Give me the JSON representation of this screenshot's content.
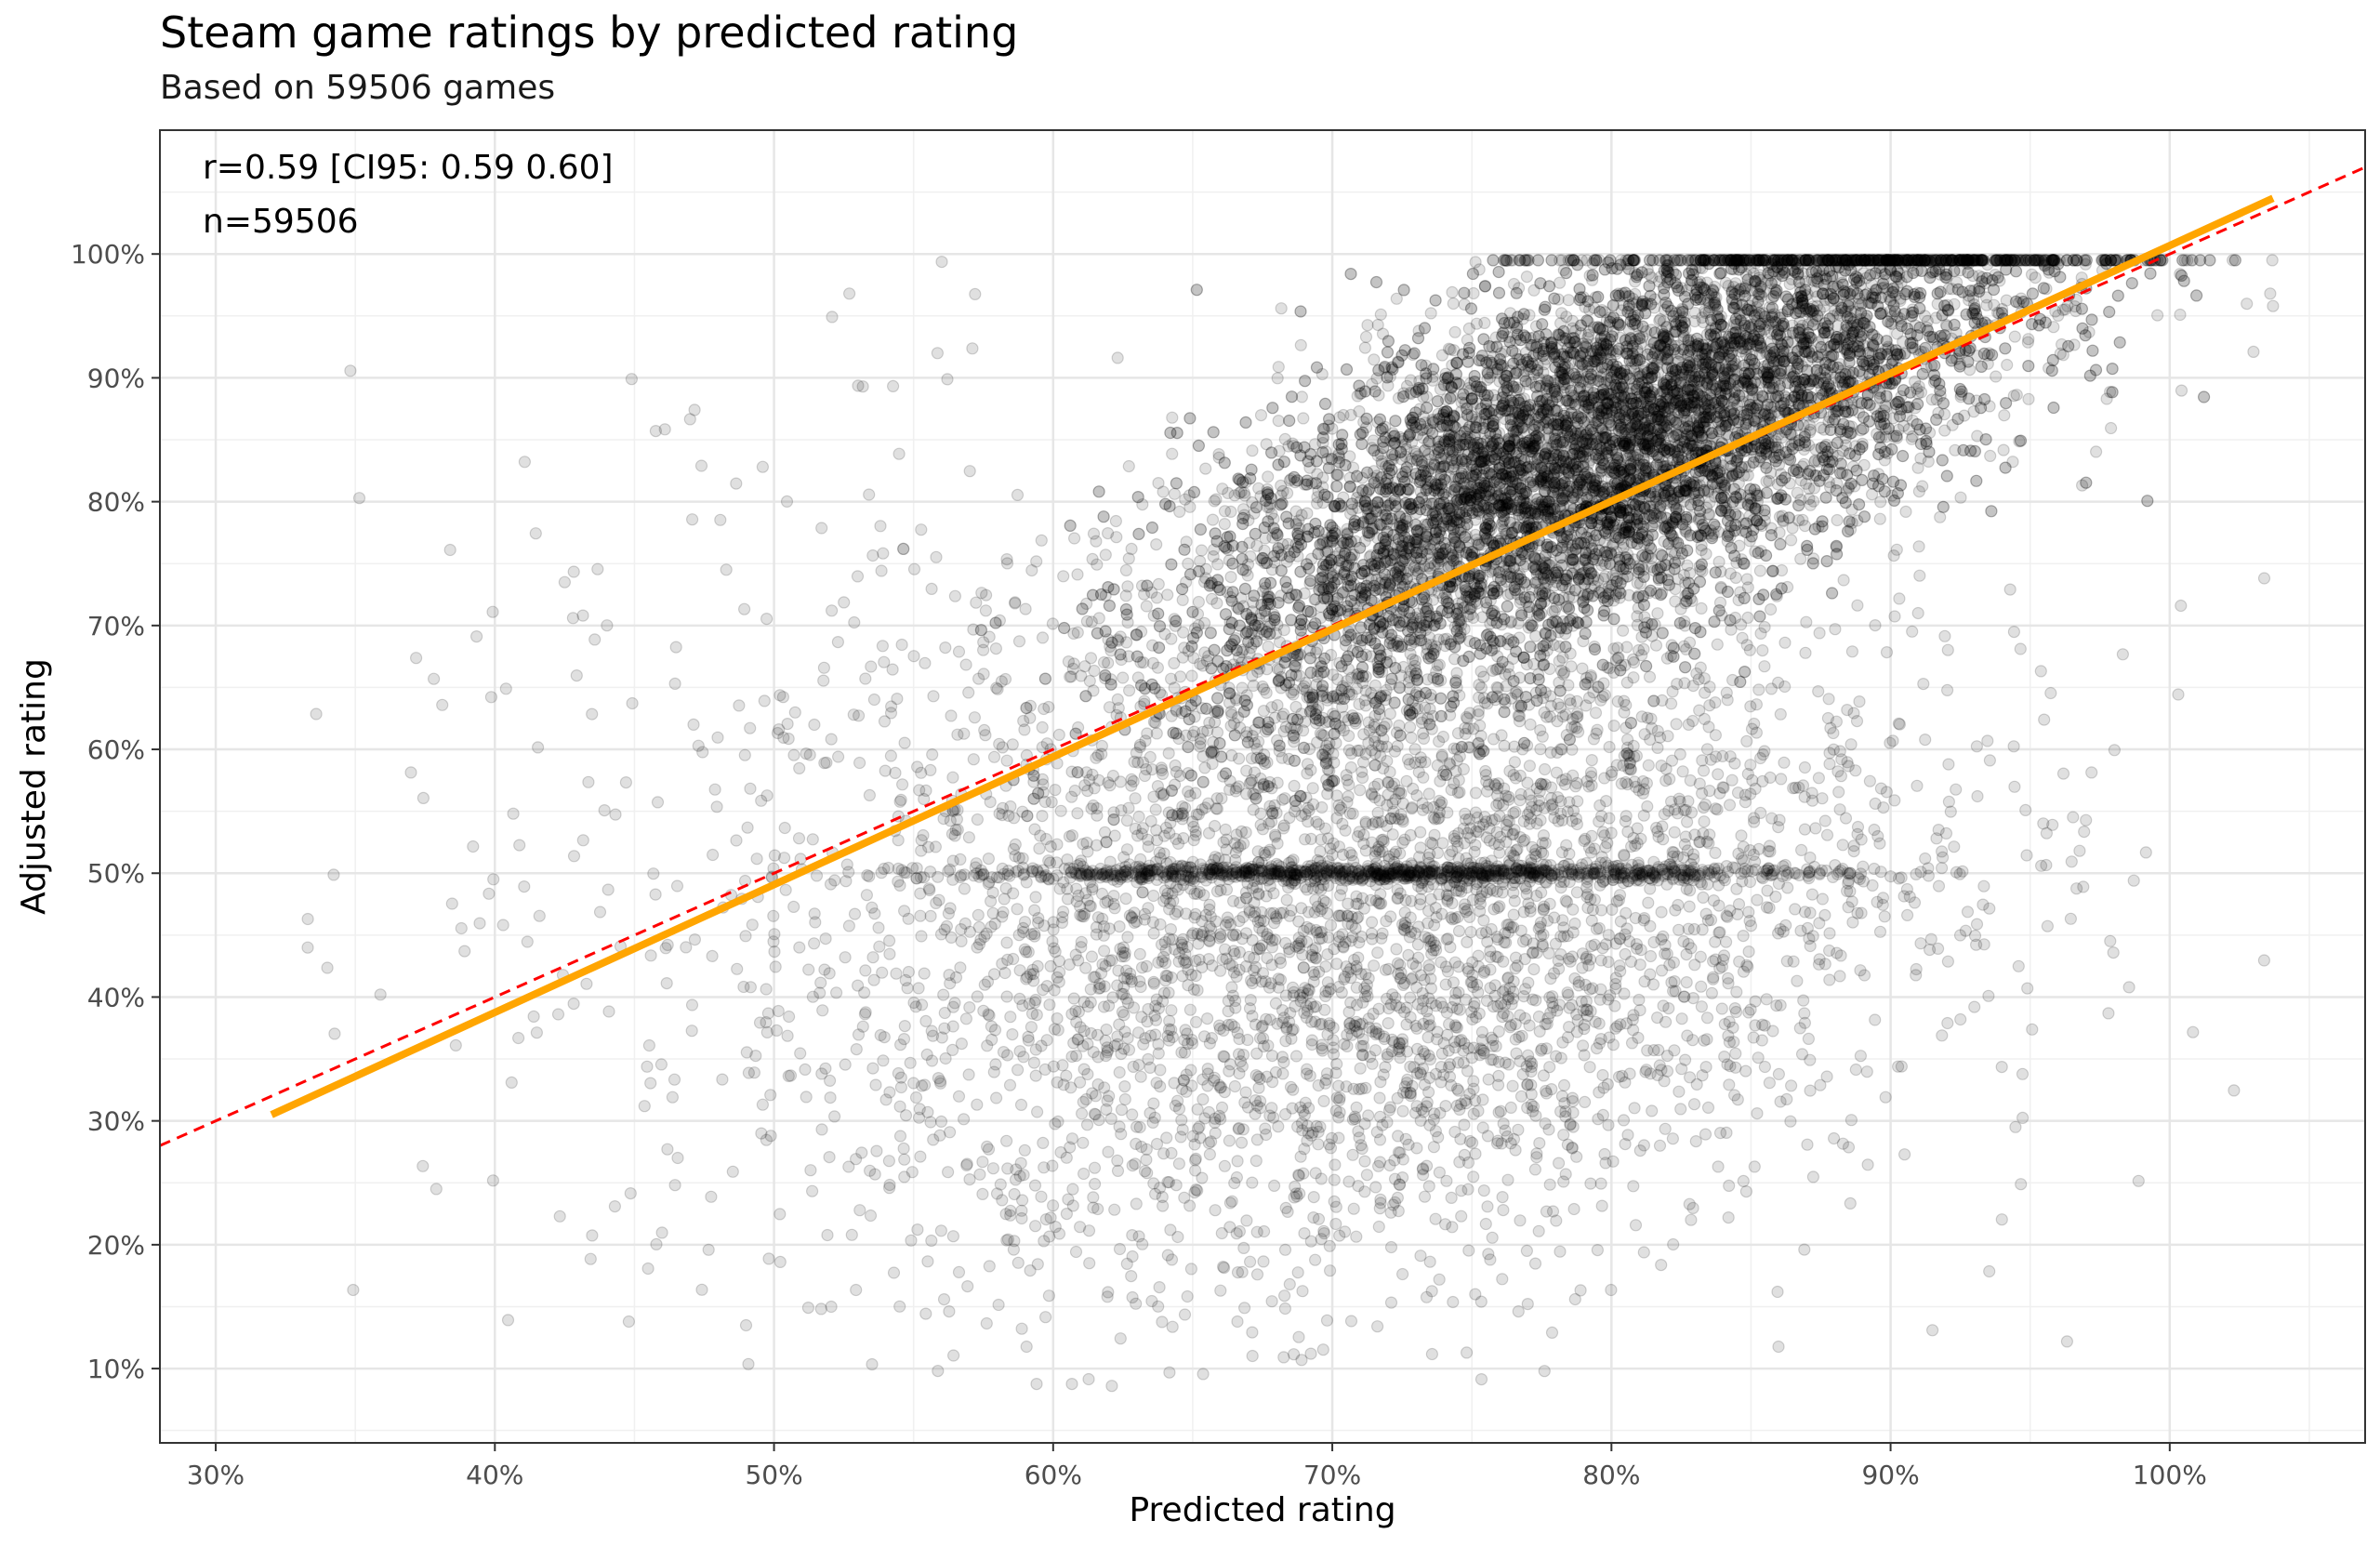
{
  "chart_data": {
    "type": "scatter",
    "title": "Steam game ratings by predicted rating",
    "subtitle": "Based on 59506 games",
    "xlabel": "Predicted rating",
    "ylabel": "Adjusted rating",
    "xlim": [
      0.28,
      1.07
    ],
    "ylim": [
      0.04,
      1.1
    ],
    "x_ticks": [
      0.3,
      0.4,
      0.5,
      0.6,
      0.7,
      0.8,
      0.9,
      1.0
    ],
    "x_tick_labels": [
      "30%",
      "40%",
      "50%",
      "60%",
      "70%",
      "80%",
      "90%",
      "100%"
    ],
    "y_ticks": [
      0.1,
      0.2,
      0.3,
      0.4,
      0.5,
      0.6,
      0.7,
      0.8,
      0.9,
      1.0
    ],
    "y_tick_labels": [
      "10%",
      "20%",
      "30%",
      "40%",
      "50%",
      "60%",
      "70%",
      "80%",
      "90%",
      "100%"
    ],
    "grid": true,
    "annotations": [
      "r=0.59 [CI95: 0.59 0.60]",
      "n=59506"
    ],
    "n_points": 59506,
    "point_color": "#000000",
    "point_alpha": 0.12,
    "identity_line": {
      "slope": 1,
      "intercept": 0,
      "color": "#ff0000",
      "style": "dashed"
    },
    "fit_line": {
      "color": "#FFA500",
      "x": [
        0.32,
        1.037
      ],
      "y": [
        0.305,
        1.045
      ]
    },
    "density_summary": {
      "main_cluster_center": [
        0.8,
        0.85
      ],
      "horizontal_band_at_y": 0.5,
      "x_range": [
        0.32,
        1.037
      ],
      "y_range": [
        0.085,
        0.995
      ]
    },
    "sample_outliers": [
      [
        0.333,
        0.463
      ],
      [
        0.359,
        0.402
      ],
      [
        0.379,
        0.245
      ],
      [
        0.386,
        0.361
      ],
      [
        0.404,
        0.649
      ],
      [
        0.406,
        0.331
      ],
      [
        0.425,
        0.735
      ],
      [
        0.428,
        0.706
      ],
      [
        0.443,
        0.231
      ],
      [
        0.448,
        0.138
      ],
      [
        0.449,
        0.899
      ],
      [
        0.474,
        0.829
      ],
      [
        0.49,
        0.135
      ],
      [
        0.527,
        0.968
      ],
      [
        0.621,
        0.086
      ],
      [
        0.689,
        0.107
      ],
      [
        0.776,
        0.098
      ],
      [
        0.915,
        0.131
      ],
      [
        1.004,
        0.716
      ],
      [
        1.03,
        0.921
      ],
      [
        1.036,
        0.968
      ],
      [
        1.037,
        0.958
      ],
      [
        0.958,
        0.539
      ],
      [
        0.949,
        0.407
      ],
      [
        0.955,
        0.624
      ]
    ]
  }
}
